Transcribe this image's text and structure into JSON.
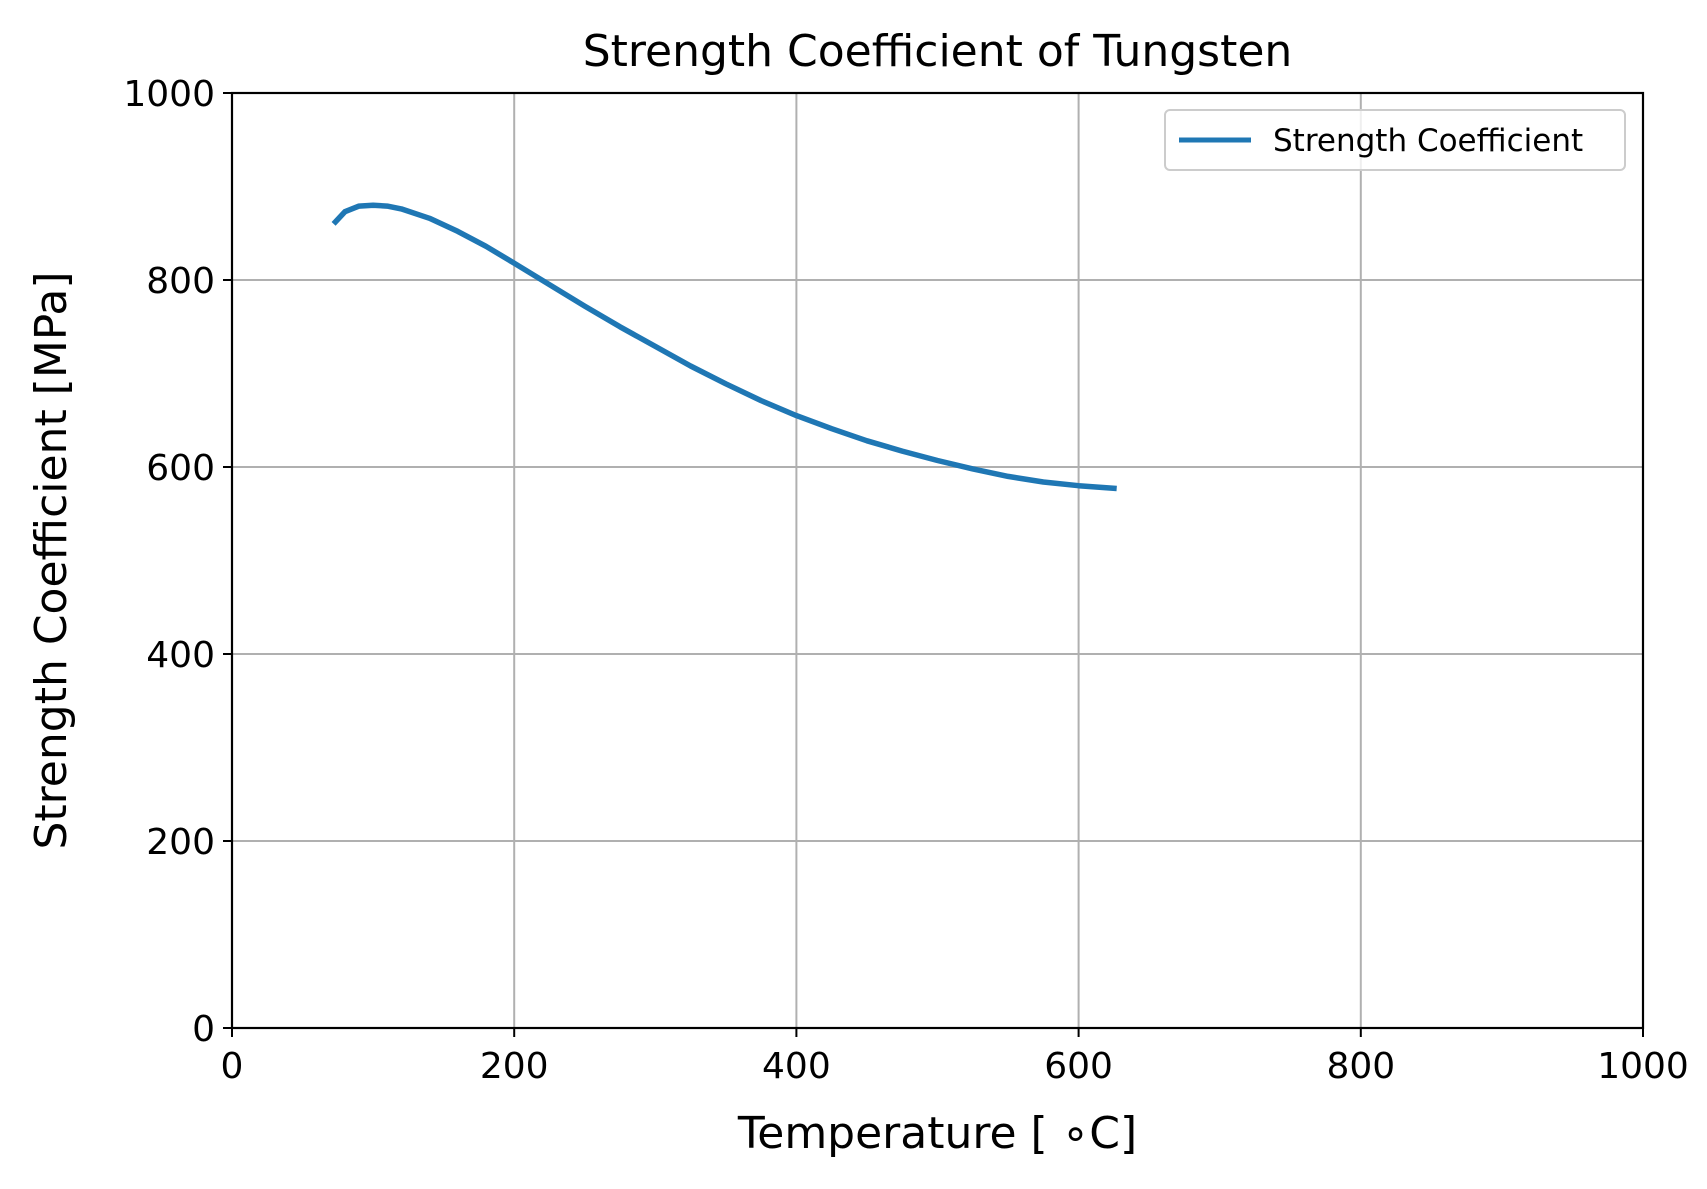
{
  "chart_data": {
    "type": "line",
    "title": "Strength Coefficient of Tungsten",
    "xlabel": "Temperature [$^\\circ$C]",
    "xlabel_display": "Temperature [ ∘C]",
    "ylabel": "Strength Coefficient [MPa]",
    "xlim": [
      0,
      1000
    ],
    "ylim": [
      0,
      1000
    ],
    "x_ticks": [
      0,
      200,
      400,
      600,
      800,
      1000
    ],
    "y_ticks": [
      0,
      200,
      400,
      600,
      800,
      1000
    ],
    "x_tick_labels": [
      "0",
      "200",
      "400",
      "600",
      "800",
      "1000"
    ],
    "y_tick_labels": [
      "0",
      "200",
      "400",
      "600",
      "800",
      "1000"
    ],
    "grid": true,
    "legend_position": "top-right",
    "series": [
      {
        "name": "Strength Coefficient",
        "color": "#1f77b4",
        "x": [
          72,
          80,
          90,
          100,
          110,
          120,
          140,
          160,
          180,
          200,
          225,
          250,
          275,
          300,
          325,
          350,
          375,
          400,
          425,
          450,
          475,
          500,
          525,
          550,
          575,
          600,
          627
        ],
        "y": [
          860,
          873,
          879,
          880,
          879,
          876,
          866,
          852,
          836,
          818,
          795,
          772,
          750,
          729,
          708,
          689,
          671,
          655,
          641,
          628,
          617,
          607,
          598,
          590,
          584,
          580,
          577
        ]
      }
    ]
  }
}
